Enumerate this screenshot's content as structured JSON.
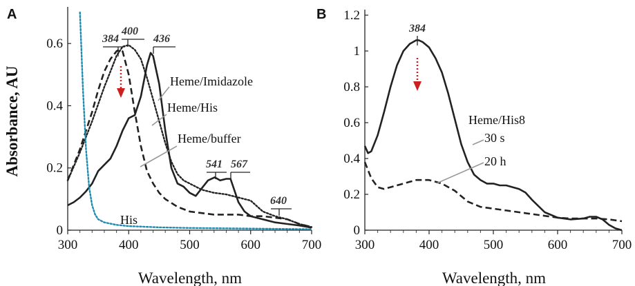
{
  "chart_data": [
    {
      "panel": "A",
      "type": "line",
      "xlabel": "Wavelength, nm",
      "ylabel": "Absorbance, AU",
      "xlim": [
        300,
        700
      ],
      "ylim": [
        0,
        0.7
      ],
      "xticks": [
        300,
        400,
        500,
        600,
        700
      ],
      "yticks": [
        0,
        0.2,
        0.4,
        0.6
      ],
      "ytick_labels": [
        "0",
        "0.2",
        "0.4",
        "0.6"
      ],
      "series": [
        {
          "name": "Heme/Imidazole",
          "style": "solid",
          "color": "#222222",
          "x": [
            300,
            310,
            320,
            330,
            340,
            350,
            360,
            370,
            380,
            390,
            400,
            410,
            420,
            430,
            436,
            440,
            450,
            460,
            470,
            480,
            490,
            500,
            510,
            520,
            530,
            541,
            550,
            560,
            567,
            580,
            590,
            600,
            620,
            640,
            660,
            680,
            700
          ],
          "y": [
            0.08,
            0.09,
            0.105,
            0.125,
            0.15,
            0.19,
            0.21,
            0.23,
            0.27,
            0.32,
            0.36,
            0.37,
            0.43,
            0.53,
            0.57,
            0.56,
            0.47,
            0.32,
            0.2,
            0.15,
            0.14,
            0.12,
            0.11,
            0.135,
            0.16,
            0.17,
            0.16,
            0.165,
            0.165,
            0.09,
            0.06,
            0.045,
            0.035,
            0.025,
            0.02,
            0.015,
            0.008
          ]
        },
        {
          "name": "Heme/His",
          "style": "dotted",
          "color": "#222222",
          "x": [
            300,
            320,
            340,
            360,
            370,
            380,
            390,
            400,
            410,
            420,
            430,
            440,
            450,
            460,
            470,
            480,
            490,
            500,
            520,
            540,
            560,
            580,
            600,
            620,
            640,
            660,
            680,
            700
          ],
          "y": [
            0.16,
            0.25,
            0.35,
            0.46,
            0.51,
            0.56,
            0.59,
            0.595,
            0.58,
            0.55,
            0.49,
            0.42,
            0.35,
            0.28,
            0.22,
            0.18,
            0.16,
            0.15,
            0.13,
            0.12,
            0.115,
            0.105,
            0.095,
            0.06,
            0.045,
            0.035,
            0.02,
            0.01
          ]
        },
        {
          "name": "Heme/buffer",
          "style": "dashed",
          "color": "#222222",
          "x": [
            300,
            320,
            340,
            350,
            360,
            370,
            380,
            384,
            390,
            400,
            410,
            420,
            430,
            440,
            450,
            460,
            480,
            500,
            520,
            540,
            560,
            580,
            600,
            620,
            640,
            660,
            680,
            700
          ],
          "y": [
            0.16,
            0.26,
            0.38,
            0.45,
            0.51,
            0.55,
            0.575,
            0.58,
            0.575,
            0.5,
            0.38,
            0.27,
            0.19,
            0.15,
            0.12,
            0.1,
            0.075,
            0.06,
            0.055,
            0.05,
            0.05,
            0.05,
            0.045,
            0.045,
            0.04,
            0.035,
            0.02,
            0.01
          ]
        },
        {
          "name": "His",
          "style": "dotted",
          "color": "#1e8bb0",
          "x": [
            320,
            325,
            330,
            335,
            340,
            345,
            350,
            360,
            380,
            400,
            450,
            500,
            600,
            700
          ],
          "y": [
            0.7,
            0.45,
            0.26,
            0.14,
            0.08,
            0.05,
            0.035,
            0.025,
            0.017,
            0.013,
            0.009,
            0.007,
            0.005,
            0.003
          ]
        }
      ],
      "peak_labels": [
        {
          "text": "384",
          "x": 384
        },
        {
          "text": "400",
          "x": 400
        },
        {
          "text": "436",
          "x": 436
        },
        {
          "text": "541",
          "x": 541
        },
        {
          "text": "567",
          "x": 567
        },
        {
          "text": "640",
          "x": 640
        }
      ],
      "arrow_color": "#cc1f1f"
    },
    {
      "panel": "B",
      "type": "line",
      "xlabel": "Wavelength, nm",
      "ylabel": "",
      "xlim": [
        300,
        700
      ],
      "ylim": [
        0,
        1.2
      ],
      "xticks": [
        300,
        400,
        500,
        600,
        700
      ],
      "yticks": [
        0,
        0.2,
        0.4,
        0.6,
        0.8,
        1.0,
        1.2
      ],
      "ytick_labels": [
        "0",
        "0.2",
        "0.4",
        "0.6",
        "0.8",
        "1",
        "1.2"
      ],
      "series_group_label": "Heme/His8",
      "series": [
        {
          "name": "30 s",
          "style": "solid",
          "color": "#222222",
          "x": [
            300,
            305,
            310,
            320,
            330,
            340,
            350,
            360,
            370,
            380,
            384,
            390,
            400,
            410,
            420,
            430,
            440,
            450,
            460,
            470,
            480,
            490,
            500,
            510,
            520,
            530,
            540,
            550,
            560,
            580,
            600,
            620,
            640,
            650,
            660,
            670,
            680,
            690,
            700
          ],
          "y": [
            0.47,
            0.43,
            0.44,
            0.53,
            0.66,
            0.8,
            0.92,
            1.0,
            1.04,
            1.06,
            1.06,
            1.05,
            1.02,
            0.96,
            0.88,
            0.76,
            0.62,
            0.48,
            0.38,
            0.31,
            0.28,
            0.26,
            0.26,
            0.25,
            0.25,
            0.24,
            0.23,
            0.21,
            0.17,
            0.1,
            0.07,
            0.06,
            0.065,
            0.075,
            0.075,
            0.06,
            0.03,
            0.01,
            0.0
          ]
        },
        {
          "name": "20 h",
          "style": "dashed",
          "color": "#222222",
          "x": [
            300,
            310,
            320,
            330,
            340,
            350,
            360,
            370,
            380,
            390,
            400,
            410,
            420,
            430,
            440,
            450,
            460,
            480,
            500,
            520,
            540,
            560,
            580,
            600,
            620,
            640,
            660,
            680,
            700
          ],
          "y": [
            0.38,
            0.29,
            0.24,
            0.23,
            0.24,
            0.25,
            0.26,
            0.27,
            0.28,
            0.28,
            0.28,
            0.27,
            0.26,
            0.24,
            0.22,
            0.19,
            0.16,
            0.13,
            0.12,
            0.11,
            0.1,
            0.09,
            0.08,
            0.07,
            0.065,
            0.065,
            0.065,
            0.06,
            0.05
          ]
        }
      ],
      "peak_labels": [
        {
          "text": "384",
          "x": 384
        }
      ],
      "arrow_color": "#cc1f1f"
    }
  ]
}
